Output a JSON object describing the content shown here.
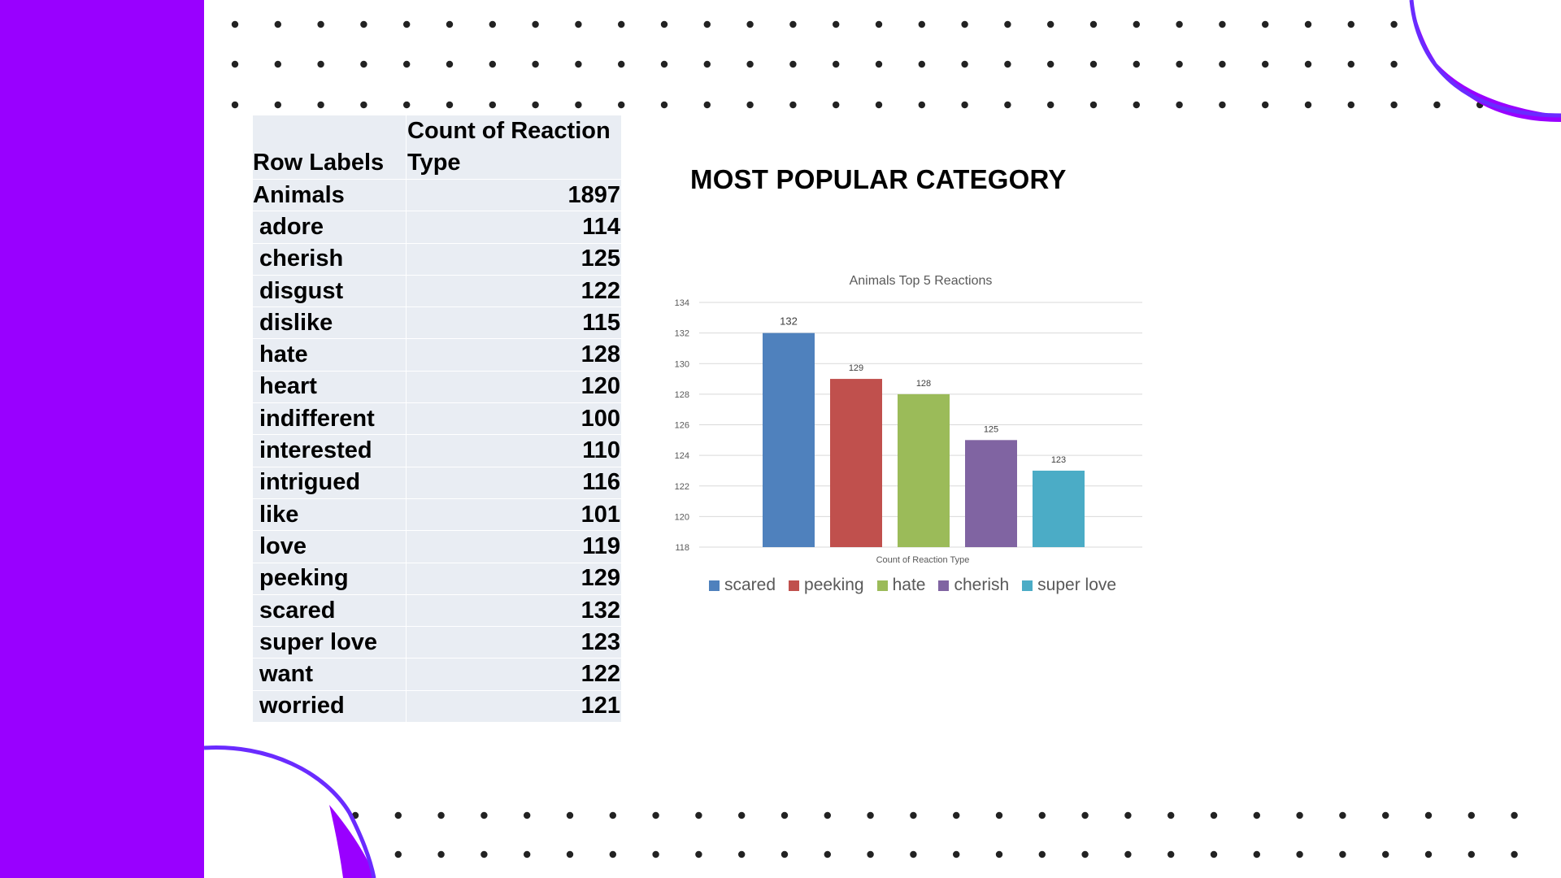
{
  "table": {
    "headers": [
      "Row Labels",
      "Count of Reaction Type"
    ],
    "group": {
      "label": "Animals",
      "value": "1897"
    },
    "rows": [
      {
        "label": "adore",
        "value": "114"
      },
      {
        "label": "cherish",
        "value": "125"
      },
      {
        "label": "disgust",
        "value": "122"
      },
      {
        "label": "dislike",
        "value": "115"
      },
      {
        "label": "hate",
        "value": "128"
      },
      {
        "label": "heart",
        "value": "120"
      },
      {
        "label": "indifferent",
        "value": "100"
      },
      {
        "label": "interested",
        "value": "110"
      },
      {
        "label": "intrigued",
        "value": "116"
      },
      {
        "label": "like",
        "value": "101"
      },
      {
        "label": "love",
        "value": "119"
      },
      {
        "label": "peeking",
        "value": "129"
      },
      {
        "label": "scared",
        "value": "132"
      },
      {
        "label": "super love",
        "value": "123"
      },
      {
        "label": "want",
        "value": "122"
      },
      {
        "label": "worried",
        "value": "121"
      }
    ]
  },
  "heading": "MOST POPULAR CATEGORY",
  "colors": {
    "accent": "#9900ff",
    "arc": "#6a2bff",
    "dots": "#222222",
    "table_bg": "#e9edf3"
  },
  "chart_data": {
    "type": "bar",
    "title": "Animals Top 5 Reactions",
    "xlabel": "Count of Reaction Type",
    "ylabel": "",
    "ylim": [
      118,
      134
    ],
    "yticks": [
      118,
      120,
      122,
      124,
      126,
      128,
      130,
      132,
      134
    ],
    "grid": true,
    "legend_position": "bottom",
    "series": [
      {
        "name": "scared",
        "value": 132,
        "color": "#4f81bd"
      },
      {
        "name": "peeking",
        "value": 129,
        "color": "#c0504d"
      },
      {
        "name": "hate",
        "value": 128,
        "color": "#9bbb59"
      },
      {
        "name": "cherish",
        "value": 125,
        "color": "#8064a2"
      },
      {
        "name": "super love",
        "value": 123,
        "color": "#4bacc6"
      }
    ]
  }
}
